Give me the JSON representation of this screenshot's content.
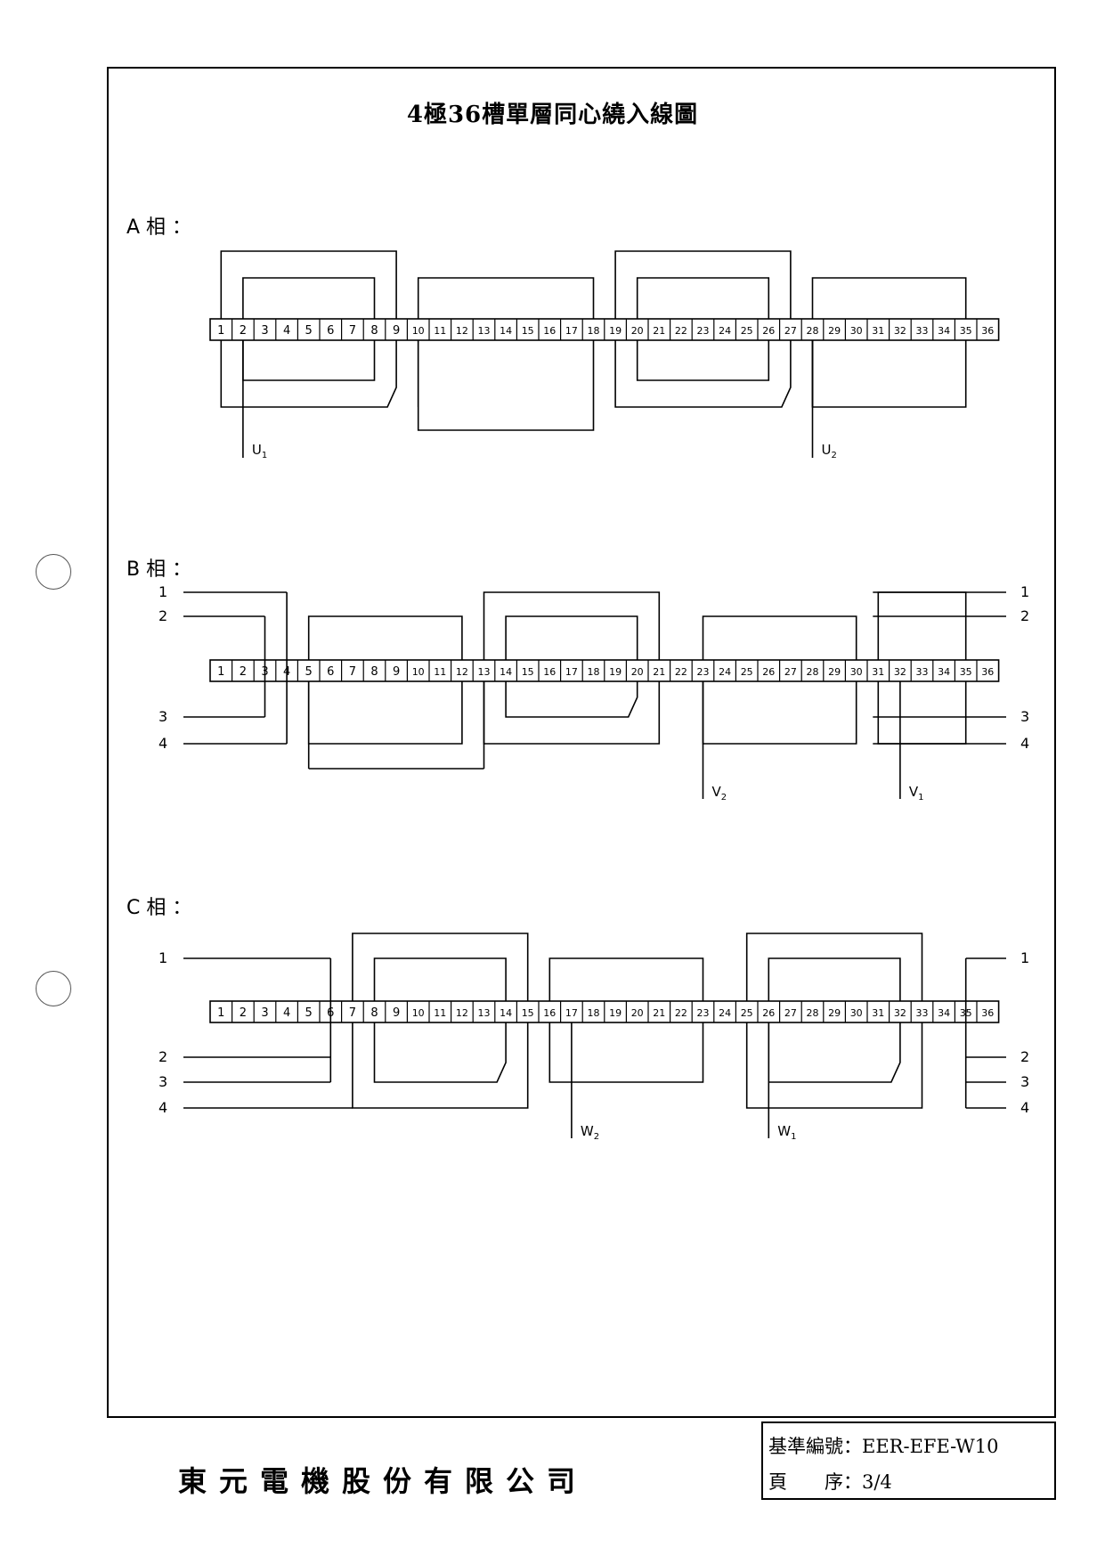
{
  "title": "4極36槽單層同心繞入線圖",
  "slot_count": 36,
  "phases": [
    {
      "key": "A",
      "label": "A 相 ：",
      "terminals": [
        {
          "label": "U1",
          "slot": 2
        },
        {
          "label": "U2",
          "slot": 28
        }
      ],
      "wire_numbers_left": [],
      "wire_numbers_right": []
    },
    {
      "key": "B",
      "label": "B 相 ：",
      "terminals": [
        {
          "label": "V2",
          "slot": 23
        },
        {
          "label": "V1",
          "slot": 32
        }
      ],
      "wire_numbers_left": [
        "1",
        "2",
        "3",
        "4"
      ],
      "wire_numbers_right": [
        "1",
        "2",
        "3",
        "4"
      ]
    },
    {
      "key": "C",
      "label": "C 相 ：",
      "terminals": [
        {
          "label": "W2",
          "slot": 17
        },
        {
          "label": "W1",
          "slot": 26
        }
      ],
      "wire_numbers_left": [
        "1",
        "2",
        "3",
        "4"
      ],
      "wire_numbers_right": [
        "1",
        "2",
        "3",
        "4"
      ]
    }
  ],
  "info": {
    "standard_no": "基準編號：EER-EFE-W10",
    "page": "頁　　序：3/4"
  },
  "company": "東元電機股份有限公司"
}
